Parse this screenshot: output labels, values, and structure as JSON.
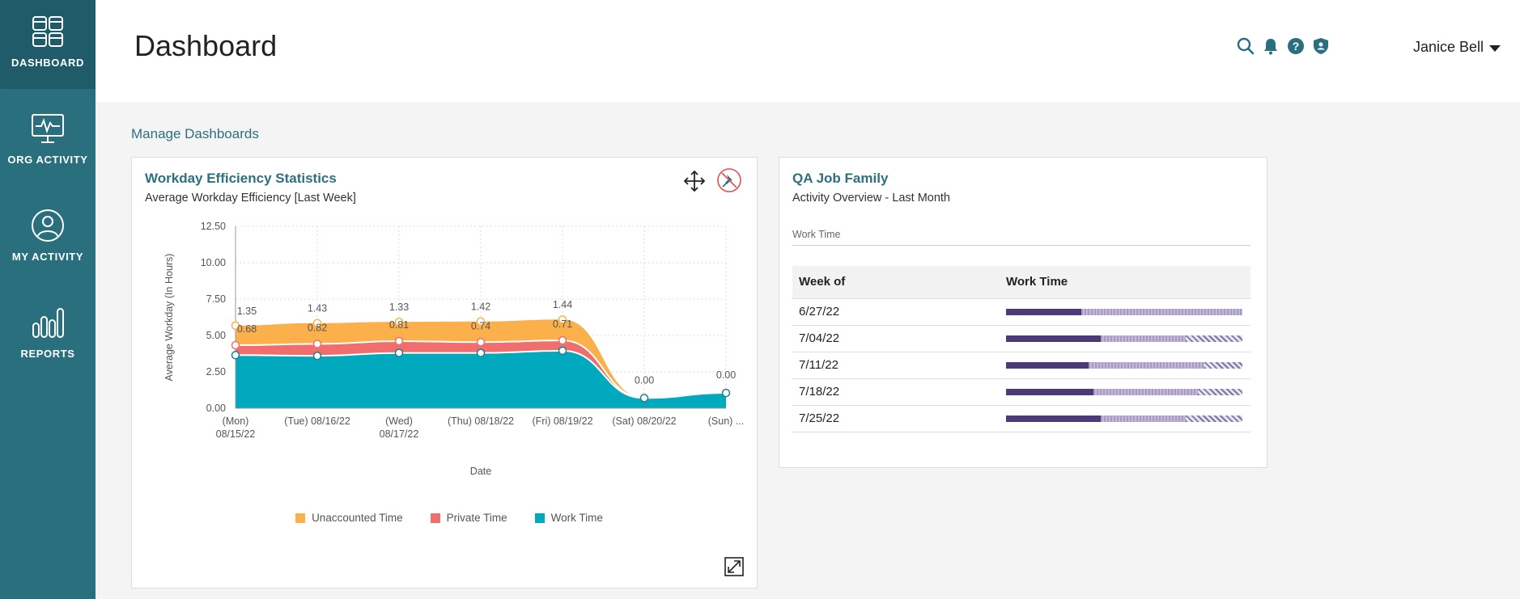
{
  "sidebar": {
    "items": [
      {
        "label": "DASHBOARD",
        "icon": "dashboard-grid-icon"
      },
      {
        "label": "ORG ACTIVITY",
        "icon": "monitor-pulse-icon"
      },
      {
        "label": "MY ACTIVITY",
        "icon": "user-circle-icon"
      },
      {
        "label": "REPORTS",
        "icon": "bar-chart-icon"
      }
    ],
    "active": "DASHBOARD",
    "background": "#2a6f7e"
  },
  "header": {
    "title": "Dashboard",
    "user_name": "Janice Bell",
    "icons": [
      "search-icon",
      "bell-icon",
      "help-icon",
      "shield-icon"
    ]
  },
  "manage_link": "Manage Dashboards",
  "efficiency_card": {
    "title": "Workday Efficiency Statistics",
    "subtitle": "Average Workday Efficiency [Last Week]",
    "tools": [
      "move-icon",
      "unpin-icon",
      "expand-icon"
    ]
  },
  "chart_data": {
    "type": "area",
    "stacked": true,
    "xlabel": "Date",
    "ylabel": "Average Workday (In Hours)",
    "ylim": [
      0,
      12.5
    ],
    "yticks": [
      "0.00",
      "2.50",
      "5.00",
      "7.50",
      "10.00",
      "12.50"
    ],
    "categories": [
      [
        "(Mon)",
        "08/15/22"
      ],
      [
        "(Tue) 08/16/22"
      ],
      [
        "(Wed)",
        "08/17/22"
      ],
      [
        "(Thu) 08/18/22"
      ],
      [
        "(Fri) 08/19/22"
      ],
      [
        "(Sat) 08/20/22"
      ],
      [
        "(Sun) ..."
      ]
    ],
    "series": [
      {
        "name": "Work Time",
        "color": "#00a9bd",
        "values": [
          3.65,
          3.6,
          3.8,
          3.8,
          3.95,
          0.7,
          1.05
        ]
      },
      {
        "name": "Private Time",
        "color": "#f06e6e",
        "values": [
          0.68,
          0.82,
          0.81,
          0.74,
          0.71,
          0,
          0
        ]
      },
      {
        "name": "Unaccounted Time",
        "color": "#fbb04c",
        "values": [
          1.35,
          1.43,
          1.33,
          1.42,
          1.44,
          0,
          0
        ]
      }
    ],
    "data_labels": {
      "Unaccounted Time": [
        "1.35",
        "1.43",
        "1.33",
        "1.42",
        "1.44",
        "0.00",
        "0.00"
      ],
      "Private Time": [
        "0.68",
        "0.82",
        "0.81",
        "0.74",
        "0.71"
      ]
    },
    "grid": true,
    "legend_position": "bottom"
  },
  "qa_card": {
    "title": "QA Job Family",
    "subtitle": "Activity Overview - Last Month",
    "filter_label": "Work Time",
    "columns": [
      "Week of",
      "Work Time"
    ],
    "rows": [
      {
        "week": "6/27/22",
        "work": 0.32,
        "mid": 0.68,
        "hatch": 0.0
      },
      {
        "week": "7/04/22",
        "work": 0.4,
        "mid": 0.36,
        "hatch": 0.24
      },
      {
        "week": "7/11/22",
        "work": 0.35,
        "mid": 0.49,
        "hatch": 0.16
      },
      {
        "week": "7/18/22",
        "work": 0.37,
        "mid": 0.44,
        "hatch": 0.19
      },
      {
        "week": "7/25/22",
        "work": 0.4,
        "mid": 0.36,
        "hatch": 0.24
      }
    ]
  }
}
